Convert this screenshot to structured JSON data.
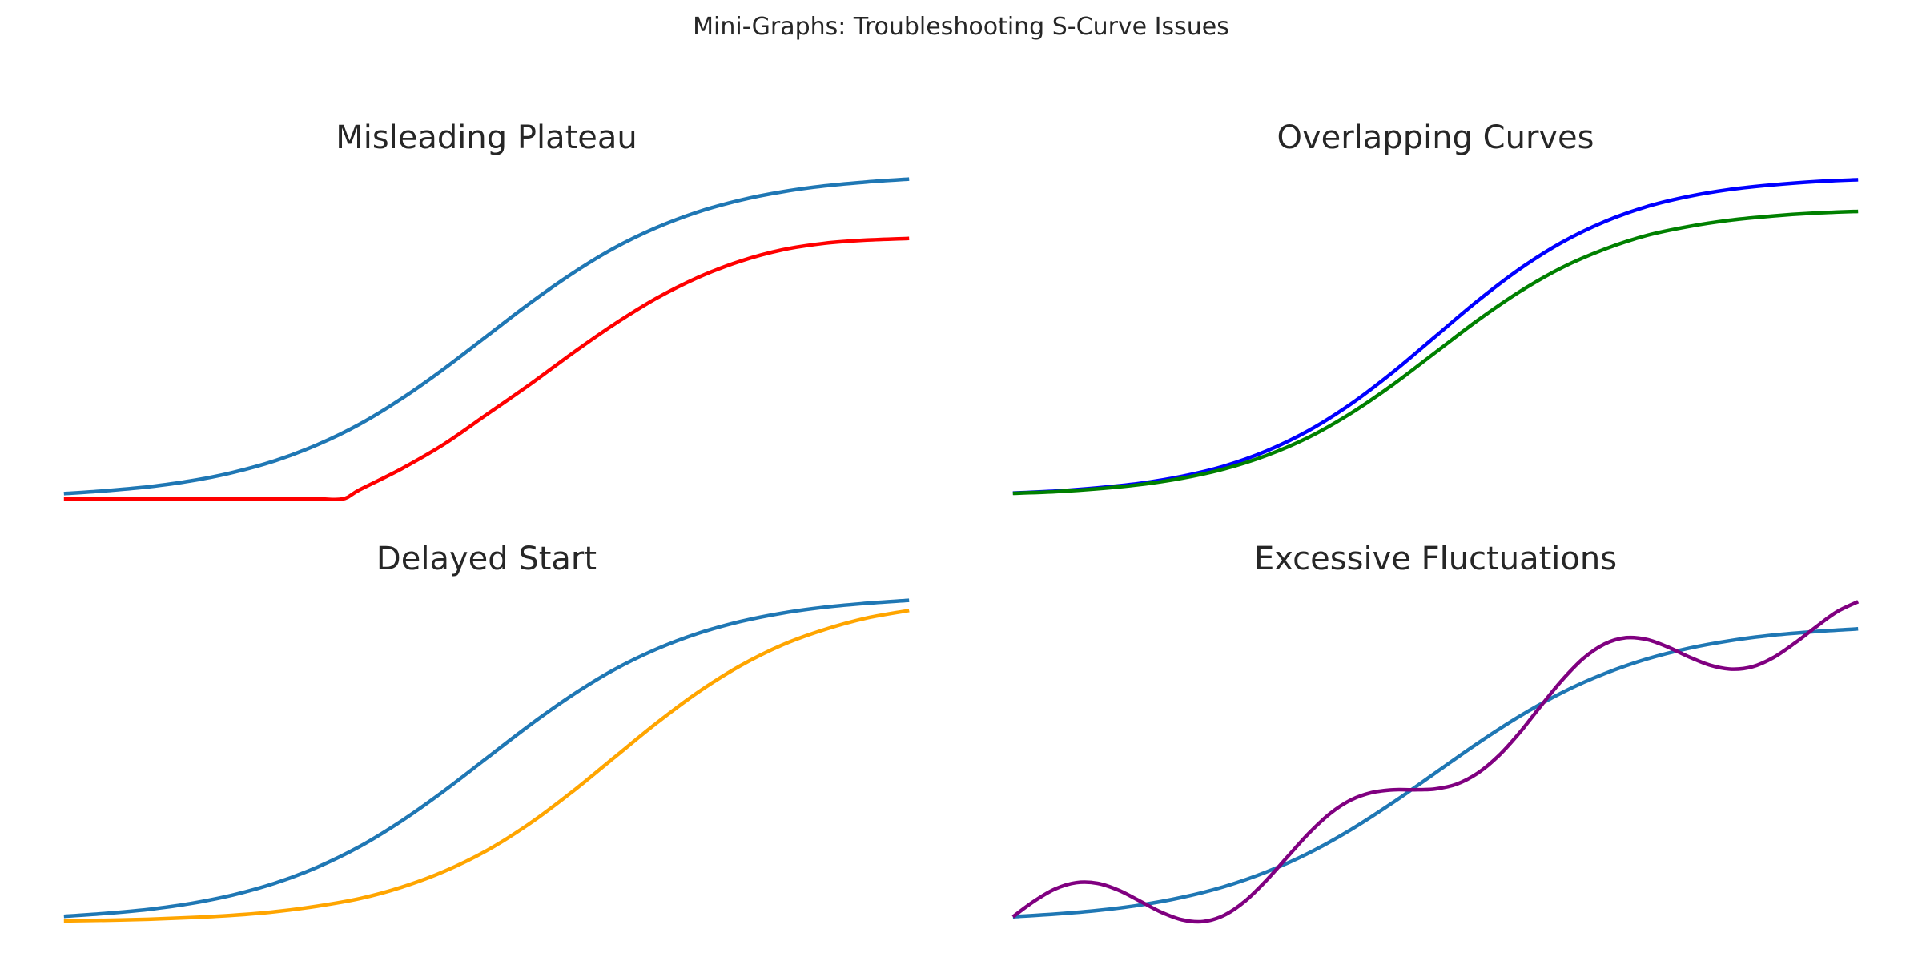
{
  "figure": {
    "title": "Mini-Graphs: Troubleshooting S-Curve Issues",
    "background": "#ffffff",
    "text_color": "#262626"
  },
  "chart_data": [
    {
      "type": "line",
      "title": "Misleading Plateau",
      "xlabel": "",
      "ylabel": "",
      "axis": "off",
      "grid": false,
      "legend": "none",
      "xlim": [
        -0.5,
        10.5
      ],
      "ylim": [
        -0.03,
        1.03
      ],
      "series": [
        {
          "name": "smooth-s-curve",
          "color": "#1f77b4",
          "x": [
            0,
            0.5,
            1,
            1.5,
            2,
            2.5,
            3,
            3.5,
            4,
            4.5,
            5,
            5.5,
            6,
            6.5,
            7,
            7.5,
            8,
            8.5,
            9,
            9.5,
            10
          ],
          "y": [
            0.018,
            0.027,
            0.039,
            0.057,
            0.083,
            0.119,
            0.168,
            0.231,
            0.31,
            0.401,
            0.5,
            0.599,
            0.69,
            0.769,
            0.832,
            0.881,
            0.917,
            0.943,
            0.961,
            0.973,
            0.982
          ]
        },
        {
          "name": "plateau-then-rise",
          "color": "#ff0000",
          "x": [
            0,
            0.5,
            1,
            1.5,
            2,
            2.5,
            3,
            3.3,
            3.5,
            4,
            4.5,
            5,
            5.5,
            6,
            6.5,
            7,
            7.5,
            8,
            8.5,
            9,
            9.5,
            10
          ],
          "y": [
            0.002,
            0.002,
            0.002,
            0.002,
            0.002,
            0.002,
            0.002,
            0.002,
            0.03,
            0.095,
            0.17,
            0.26,
            0.35,
            0.445,
            0.535,
            0.615,
            0.68,
            0.73,
            0.765,
            0.785,
            0.795,
            0.8
          ]
        }
      ]
    },
    {
      "type": "line",
      "title": "Overlapping Curves",
      "xlabel": "",
      "ylabel": "",
      "axis": "off",
      "grid": false,
      "legend": "none",
      "xlim": [
        -0.5,
        10.5
      ],
      "ylim": [
        -0.04,
        1.04
      ],
      "series": [
        {
          "name": "upper-s-curve",
          "color": "#0000ff",
          "x": [
            0,
            0.5,
            1,
            1.5,
            2,
            2.5,
            3,
            3.5,
            4,
            4.5,
            5,
            5.5,
            6,
            6.5,
            7,
            7.5,
            8,
            8.5,
            9,
            9.5,
            10
          ],
          "y": [
            0.011,
            0.017,
            0.027,
            0.041,
            0.063,
            0.095,
            0.142,
            0.206,
            0.289,
            0.389,
            0.5,
            0.611,
            0.711,
            0.794,
            0.858,
            0.905,
            0.937,
            0.959,
            0.973,
            0.983,
            0.989
          ]
        },
        {
          "name": "lower-s-curve",
          "color": "#008000",
          "x": [
            0,
            0.5,
            1,
            1.5,
            2,
            2.5,
            3,
            3.5,
            4,
            4.5,
            5,
            5.5,
            6,
            6.5,
            7,
            7.5,
            8,
            8.5,
            9,
            9.5,
            10
          ],
          "y": [
            0.01,
            0.015,
            0.024,
            0.037,
            0.057,
            0.086,
            0.128,
            0.185,
            0.26,
            0.35,
            0.45,
            0.55,
            0.64,
            0.715,
            0.772,
            0.815,
            0.843,
            0.863,
            0.876,
            0.885,
            0.89
          ]
        }
      ]
    },
    {
      "type": "line",
      "title": "Delayed Start",
      "xlabel": "",
      "ylabel": "",
      "axis": "off",
      "grid": false,
      "legend": "none",
      "xlim": [
        -0.5,
        10.5
      ],
      "ylim": [
        -0.05,
        1.03
      ],
      "series": [
        {
          "name": "on-time-s-curve",
          "color": "#1f77b4",
          "x": [
            0,
            0.5,
            1,
            1.5,
            2,
            2.5,
            3,
            3.5,
            4,
            4.5,
            5,
            5.5,
            6,
            6.5,
            7,
            7.5,
            8,
            8.5,
            9,
            9.5,
            10
          ],
          "y": [
            0.018,
            0.027,
            0.039,
            0.057,
            0.083,
            0.119,
            0.168,
            0.231,
            0.31,
            0.401,
            0.5,
            0.599,
            0.69,
            0.769,
            0.832,
            0.881,
            0.917,
            0.943,
            0.961,
            0.973,
            0.982
          ]
        },
        {
          "name": "delayed-s-curve",
          "color": "#ffa500",
          "x": [
            0,
            0.5,
            1,
            1.5,
            2,
            2.5,
            3,
            3.5,
            4,
            4.5,
            5,
            5.5,
            6,
            6.5,
            7,
            7.5,
            8,
            8.5,
            9,
            9.5,
            10
          ],
          "y": [
            0.004,
            0.006,
            0.009,
            0.014,
            0.021,
            0.032,
            0.049,
            0.072,
            0.107,
            0.155,
            0.218,
            0.299,
            0.395,
            0.5,
            0.605,
            0.701,
            0.782,
            0.846,
            0.893,
            0.928,
            0.951
          ]
        }
      ]
    },
    {
      "type": "line",
      "title": "Excessive Fluctuations",
      "xlabel": "",
      "ylabel": "",
      "axis": "off",
      "grid": false,
      "legend": "none",
      "xlim": [
        -0.5,
        10.5
      ],
      "ylim": [
        -0.055,
        1.13
      ],
      "series": [
        {
          "name": "smooth-s-curve",
          "color": "#1f77b4",
          "x": [
            0,
            0.5,
            1,
            1.5,
            2,
            2.5,
            3,
            3.5,
            4,
            4.5,
            5,
            5.5,
            6,
            6.5,
            7,
            7.5,
            8,
            8.5,
            9,
            9.5,
            10
          ],
          "y": [
            0.018,
            0.027,
            0.039,
            0.057,
            0.083,
            0.119,
            0.168,
            0.231,
            0.31,
            0.401,
            0.5,
            0.599,
            0.69,
            0.769,
            0.832,
            0.881,
            0.917,
            0.943,
            0.961,
            0.973,
            0.982
          ]
        },
        {
          "name": "fluctuating-s-curve",
          "color": "#800080",
          "x": [
            0,
            0.25,
            0.5,
            0.75,
            1,
            1.25,
            1.5,
            1.75,
            2,
            2.25,
            2.5,
            2.75,
            3,
            3.25,
            3.5,
            3.75,
            4,
            4.25,
            4.5,
            4.75,
            5,
            5.25,
            5.5,
            5.75,
            6,
            6.25,
            6.5,
            6.75,
            7,
            7.25,
            7.5,
            7.75,
            8,
            8.25,
            8.5,
            8.75,
            9,
            9.25,
            9.5,
            9.75,
            10
          ],
          "y": [
            0.018,
            0.07,
            0.111,
            0.132,
            0.13,
            0.107,
            0.071,
            0.034,
            0.008,
            0.002,
            0.023,
            0.071,
            0.14,
            0.219,
            0.297,
            0.363,
            0.409,
            0.434,
            0.443,
            0.443,
            0.446,
            0.462,
            0.499,
            0.558,
            0.636,
            0.725,
            0.811,
            0.883,
            0.931,
            0.952,
            0.946,
            0.921,
            0.888,
            0.86,
            0.847,
            0.855,
            0.886,
            0.934,
            0.988,
            1.039,
            1.073
          ]
        }
      ]
    }
  ]
}
